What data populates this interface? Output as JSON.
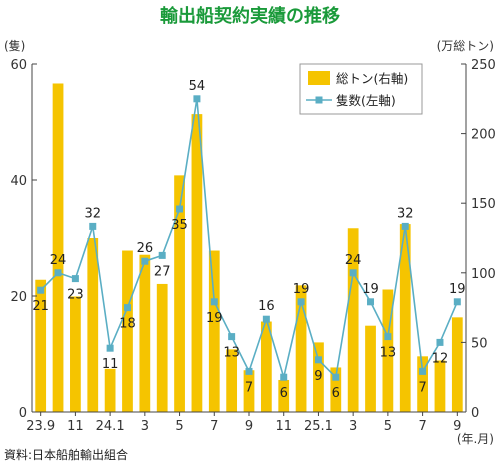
{
  "chart_data": {
    "type": "bar+line",
    "title": "輸出船契約実績の推移",
    "left_axis_label": "(隻)",
    "right_axis_label": "(万総トン)",
    "x_axis_unit": "(年.月)",
    "left_ylim": [
      0,
      60
    ],
    "left_ticks": [
      "0",
      "20",
      "40",
      "60"
    ],
    "right_ylim": [
      0,
      250
    ],
    "right_ticks": [
      "0",
      "50",
      "100",
      "150",
      "200",
      "250"
    ],
    "x_tick_labels": [
      "23.9",
      "11",
      "24.1",
      "3",
      "5",
      "7",
      "9",
      "11",
      "25.1",
      "3",
      "5",
      "7",
      "9"
    ],
    "categories": [
      "23.9",
      "23.10",
      "23.11",
      "23.12",
      "24.1",
      "24.2",
      "24.3",
      "24.4",
      "24.5",
      "24.6",
      "24.7",
      "24.8",
      "24.9",
      "24.10",
      "24.11",
      "24.12",
      "25.1",
      "25.2",
      "25.3",
      "25.4",
      "25.5",
      "25.6",
      "25.7",
      "25.8",
      "25.9"
    ],
    "series": [
      {
        "name": "総トン(右軸)",
        "type": "bar",
        "axis": "right",
        "color": "#f5c400",
        "values": [
          95,
          236,
          83,
          125,
          31,
          116,
          113,
          92,
          170,
          214,
          116,
          45,
          30,
          65,
          23,
          91,
          50,
          32,
          132,
          62,
          88,
          135,
          40,
          37,
          68
        ]
      },
      {
        "name": "隻数(左軸)",
        "type": "line",
        "axis": "left",
        "color": "#5aaec4",
        "values": [
          21,
          24,
          23,
          32,
          11,
          18,
          26,
          27,
          35,
          54,
          19,
          13,
          7,
          16,
          6,
          19,
          9,
          6,
          24,
          19,
          13,
          32,
          7,
          12,
          19
        ]
      }
    ],
    "data_labels": [
      {
        "index": 0,
        "text": "21"
      },
      {
        "index": 1,
        "text": "24"
      },
      {
        "index": 2,
        "text": "23"
      },
      {
        "index": 3,
        "text": "32"
      },
      {
        "index": 4,
        "text": "11"
      },
      {
        "index": 5,
        "text": "18"
      },
      {
        "index": 6,
        "text": "26"
      },
      {
        "index": 7,
        "text": "27"
      },
      {
        "index": 8,
        "text": "35"
      },
      {
        "index": 9,
        "text": "54"
      },
      {
        "index": 10,
        "text": "19"
      },
      {
        "index": 11,
        "text": "13"
      },
      {
        "index": 12,
        "text": "7"
      },
      {
        "index": 13,
        "text": "16"
      },
      {
        "index": 14,
        "text": "6"
      },
      {
        "index": 15,
        "text": "19"
      },
      {
        "index": 16,
        "text": "9"
      },
      {
        "index": 17,
        "text": "6"
      },
      {
        "index": 18,
        "text": "24"
      },
      {
        "index": 19,
        "text": "19"
      },
      {
        "index": 20,
        "text": "13"
      },
      {
        "index": 21,
        "text": "32"
      },
      {
        "index": 22,
        "text": "7"
      },
      {
        "index": 23,
        "text": "12"
      },
      {
        "index": 24,
        "text": "19"
      }
    ],
    "legend_position": "top-right",
    "grid": false,
    "source": "資料:日本船舶輸出組合",
    "title_color": "#1a9a3a"
  }
}
